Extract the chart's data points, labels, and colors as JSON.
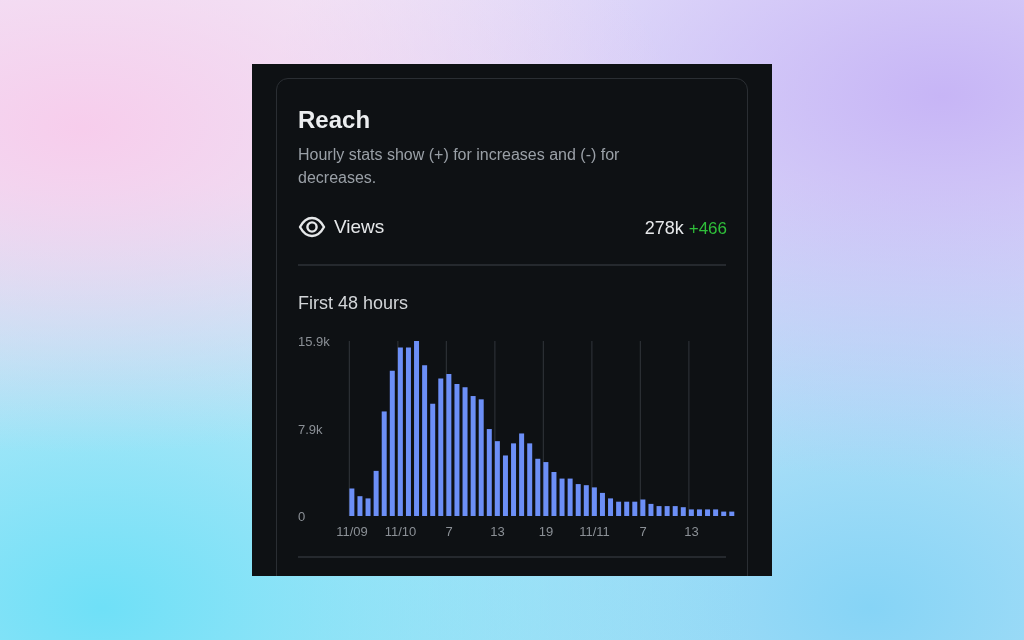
{
  "chart_data": {
    "type": "bar",
    "title": "Reach",
    "subtitle": "Hourly stats show (+) for increases and (-) for decreases.",
    "annotations": [
      "Views",
      "278k",
      "+466",
      "First 48 hours"
    ],
    "categories": [
      "11/09",
      null,
      null,
      null,
      null,
      null,
      "11/10",
      null,
      null,
      null,
      null,
      null,
      "7",
      null,
      null,
      null,
      null,
      null,
      "13",
      null,
      null,
      null,
      null,
      null,
      "19",
      null,
      null,
      null,
      null,
      null,
      "11/11",
      null,
      null,
      null,
      null,
      null,
      "7",
      null,
      null,
      null,
      null,
      null,
      "13",
      null,
      null,
      null,
      null,
      null
    ],
    "values": [
      2500,
      1800,
      1600,
      4100,
      9500,
      13200,
      15300,
      15300,
      15900,
      13700,
      10200,
      12500,
      12900,
      12000,
      11700,
      10900,
      10600,
      7900,
      6800,
      5500,
      6600,
      7500,
      6600,
      5200,
      4900,
      4000,
      3400,
      3400,
      2900,
      2800,
      2600,
      2100,
      1600,
      1300,
      1300,
      1300,
      1500,
      1100,
      900,
      900,
      900,
      800,
      600,
      600,
      600,
      600,
      400,
      400
    ],
    "color": "#6c8ff7",
    "ylim": [
      0,
      15900
    ],
    "yticks": [
      0,
      {
        "value": 7900,
        "label": "7.9k"
      },
      {
        "value": 15900,
        "label": "15.9k"
      }
    ],
    "grid": "x"
  }
}
